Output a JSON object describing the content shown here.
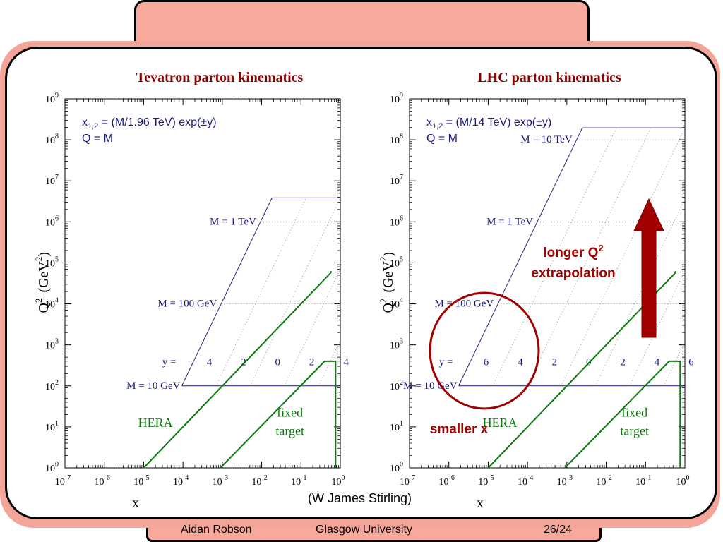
{
  "footer": {
    "author": "Aidan Robson",
    "institution": "Glasgow University",
    "page": "26/24"
  },
  "credit": "(W James Stirling)",
  "annotations": {
    "longer_line1": "longer Q",
    "longer_sup": "2",
    "longer_line2": "extrapolation",
    "smaller_x": "smaller x"
  },
  "colors": {
    "title": "#8b0000",
    "kinematics": "#1a1a7a",
    "regions": "#0a7a0a",
    "highlight": "#a00000",
    "accent_fill": "#f9a89c"
  },
  "chart_data": [
    {
      "type": "line",
      "title": "Tevatron parton kinematics",
      "xlabel": "x",
      "ylabel": "Q",
      "ylabel_sup": "2",
      "ylabel_unit": "(GeV",
      "ylabel_unit_sup": "2",
      "ylabel_unit_close": ")",
      "x_scale": "log",
      "y_scale": "log",
      "xlim_exp": [
        -7,
        0
      ],
      "ylim_exp": [
        0,
        9
      ],
      "x_ticks": [
        "-7",
        "-6",
        "-5",
        "-4",
        "-3",
        "-2",
        "-1",
        "0"
      ],
      "y_ticks": [
        "0",
        "1",
        "2",
        "3",
        "4",
        "5",
        "6",
        "7",
        "8",
        "9"
      ],
      "tick_base": "10",
      "formula_line1_pre": "x",
      "formula_sub": "1,2",
      "formula_line1_post": " = (M/1.96 TeV) exp(",
      "formula_pm": "±",
      "formula_y": "y",
      "formula_close": ")",
      "formula_line2": "Q = M",
      "sqrt_s_tev": 1.96,
      "y_label_prefix": "y =",
      "y_labels": [
        "4",
        "2",
        "0",
        "2",
        "4"
      ],
      "y_values": [
        4,
        2,
        0,
        -2,
        -4
      ],
      "mass_labels": [
        {
          "text": "M = 10 GeV",
          "log10_q2": 2
        },
        {
          "text": "M = 100 GeV",
          "log10_q2": 4
        },
        {
          "text": "M = 1 TeV",
          "log10_q2": 6
        }
      ],
      "series": [
        {
          "name": "HERA",
          "points": [
            [
              -5.0,
              0.0
            ],
            [
              -0.24,
              4.76
            ],
            [
              -0.24,
              4.8
            ]
          ]
        },
        {
          "name": "fixed target",
          "points": [
            [
              -3.05,
              0.0
            ],
            [
              -0.4,
              2.6
            ],
            [
              -0.12,
              2.6
            ],
            [
              -0.12,
              0.0
            ]
          ]
        }
      ]
    },
    {
      "type": "line",
      "title": "LHC parton kinematics",
      "xlabel": "x",
      "ylabel": "Q",
      "ylabel_sup": "2",
      "ylabel_unit": "(GeV",
      "ylabel_unit_sup": "2",
      "ylabel_unit_close": ")",
      "x_scale": "log",
      "y_scale": "log",
      "xlim_exp": [
        -7,
        0
      ],
      "ylim_exp": [
        0,
        9
      ],
      "x_ticks": [
        "-7",
        "-6",
        "-5",
        "-4",
        "-3",
        "-2",
        "-1",
        "0"
      ],
      "y_ticks": [
        "0",
        "1",
        "2",
        "3",
        "4",
        "5",
        "6",
        "7",
        "8",
        "9"
      ],
      "tick_base": "10",
      "formula_line1_pre": "x",
      "formula_sub": "1,2",
      "formula_line1_post": " = (M/14 TeV) exp(",
      "formula_pm": "±",
      "formula_y": "y",
      "formula_close": ")",
      "formula_line2": "Q = M",
      "sqrt_s_tev": 14,
      "y_label_prefix": "y =",
      "y_labels": [
        "6",
        "4",
        "2",
        "0",
        "2",
        "4",
        "6"
      ],
      "y_values": [
        6,
        4,
        2,
        0,
        -2,
        -4,
        -6
      ],
      "mass_labels": [
        {
          "text": "M = 10 GeV",
          "log10_q2": 2
        },
        {
          "text": "M = 100 GeV",
          "log10_q2": 4
        },
        {
          "text": "M = 1 TeV",
          "log10_q2": 6
        },
        {
          "text": "M = 10 TeV",
          "log10_q2": 8
        }
      ],
      "series": [
        {
          "name": "HERA",
          "points": [
            [
              -5.0,
              0.0
            ],
            [
              -0.24,
              4.76
            ],
            [
              -0.24,
              4.8
            ]
          ]
        },
        {
          "name": "fixed target",
          "points": [
            [
              -3.05,
              0.0
            ],
            [
              -0.4,
              2.6
            ],
            [
              -0.12,
              2.6
            ],
            [
              -0.12,
              0.0
            ]
          ]
        }
      ]
    }
  ]
}
